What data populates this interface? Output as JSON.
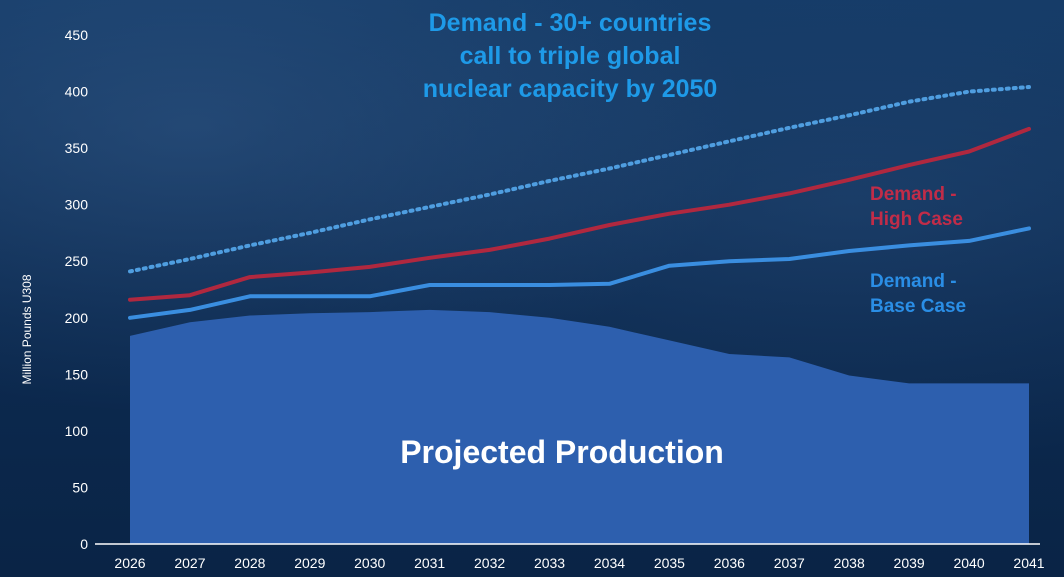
{
  "chart_data": {
    "type": "area",
    "title_lines": [
      "Demand - 30+ countries",
      "call to triple global",
      "nuclear capacity by 2050"
    ],
    "ylabel": "Million Pounds U308",
    "ylim": [
      0,
      450
    ],
    "yticks": [
      "0",
      "50",
      "100",
      "150",
      "200",
      "250",
      "300",
      "350",
      "400",
      "450"
    ],
    "categories": [
      "2026",
      "2027",
      "2028",
      "2029",
      "2030",
      "2031",
      "2032",
      "2033",
      "2034",
      "2035",
      "2036",
      "2037",
      "2038",
      "2039",
      "2040",
      "2041"
    ],
    "series": [
      {
        "name": "Projected Production",
        "style": "area",
        "color": "#2d5fae",
        "values": [
          184,
          196,
          202,
          204,
          205,
          207,
          205,
          200,
          192,
          180,
          168,
          165,
          149,
          142,
          142,
          142
        ]
      },
      {
        "style": "dotted-line",
        "color": "#4f9ee0",
        "values": [
          241,
          252,
          264,
          275,
          287,
          298,
          309,
          321,
          332,
          344,
          356,
          368,
          379,
          391,
          400,
          404
        ]
      },
      {
        "name": "Demand - High Case",
        "label_lines": [
          "Demand -",
          "High Case"
        ],
        "style": "line",
        "color": "#b0283f",
        "values": [
          216,
          220,
          236,
          240,
          245,
          253,
          260,
          270,
          282,
          292,
          300,
          310,
          322,
          335,
          347,
          367
        ]
      },
      {
        "name": "Demand - Base Case",
        "label_lines": [
          "Demand -",
          "Base Case"
        ],
        "style": "line",
        "color": "#3a8ee0",
        "values": [
          200,
          207,
          219,
          219,
          219,
          229,
          229,
          229,
          230,
          246,
          250,
          252,
          259,
          264,
          268,
          279
        ]
      }
    ],
    "grid": false,
    "legend": "inline labels"
  }
}
